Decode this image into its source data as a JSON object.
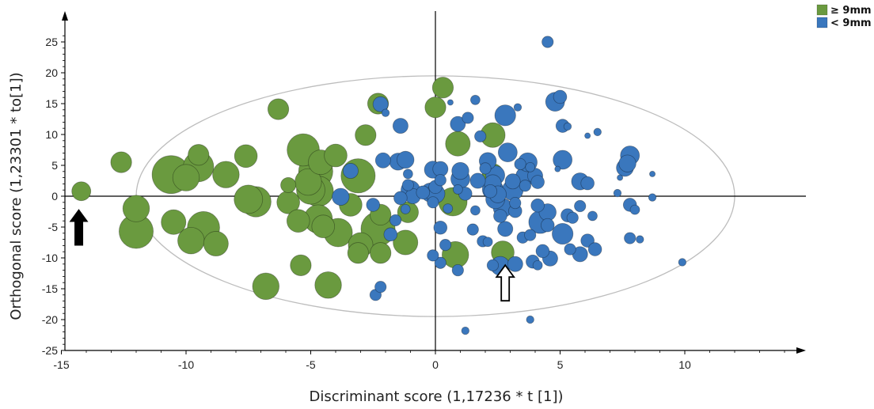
{
  "chart_data": {
    "type": "scatter",
    "xlabel": "Discriminant score (1,17236 * t [1])",
    "ylabel": "Orthogonal score (1,23301 * to[1])",
    "xlim": [
      -15,
      15
    ],
    "ylim": [
      -25,
      28
    ],
    "x_ticks": [
      -15,
      -10,
      -5,
      0,
      5,
      10
    ],
    "y_ticks": [
      -25,
      -20,
      -15,
      -10,
      -5,
      0,
      5,
      10,
      15,
      20,
      25
    ],
    "grid": false,
    "legend_position": "top-right",
    "colors": {
      "ge9": "#6a9a3f",
      "lt9": "#3a77bd",
      "ellipse": "#bdbdbd",
      "axis": "#000000"
    },
    "ellipse": {
      "center": [
        0,
        0
      ],
      "rx": 12,
      "ry": 19.5
    },
    "annotations": [
      {
        "type": "filled-arrow",
        "x": -14.3,
        "y": -5,
        "direction": "up"
      },
      {
        "type": "hollow-arrow",
        "x": 2.8,
        "y": -14,
        "direction": "up"
      }
    ],
    "series": [
      {
        "name": "≥ 9mm",
        "color": "#6a9a3f",
        "points": [
          [
            -14.2,
            0.8,
            1
          ],
          [
            -12.6,
            5.5,
            1.1
          ],
          [
            -12,
            -2,
            1.4
          ],
          [
            -12,
            -5.7,
            1.8
          ],
          [
            -10.6,
            3.5,
            2.0
          ],
          [
            -10,
            3,
            1.4
          ],
          [
            -9.5,
            4.8,
            1.6
          ],
          [
            -9.5,
            6.7,
            1.1
          ],
          [
            -10.5,
            -4.2,
            1.3
          ],
          [
            -9.8,
            -7.2,
            1.4
          ],
          [
            -9.3,
            -5.1,
            1.7
          ],
          [
            -8.8,
            -7.7,
            1.3
          ],
          [
            -8.4,
            3.5,
            1.4
          ],
          [
            -7.6,
            6.5,
            1.2
          ],
          [
            -7.5,
            -0.5,
            1.5
          ],
          [
            -7.2,
            -0.9,
            1.6
          ],
          [
            -6.8,
            -14.6,
            1.4
          ],
          [
            -6.3,
            14.1,
            1.1
          ],
          [
            -5.9,
            1.8,
            0.8
          ],
          [
            -5.9,
            -1,
            1.2
          ],
          [
            -5.5,
            -4,
            1.2
          ],
          [
            -5.4,
            -11.2,
            1.1
          ],
          [
            -5.3,
            7.5,
            1.7
          ],
          [
            -5.1,
            2.3,
            1.4
          ],
          [
            -5,
            1,
            1.5
          ],
          [
            -4.8,
            4,
            1.8
          ],
          [
            -4.6,
            5.5,
            1.3
          ],
          [
            -4.7,
            0.8,
            1.6
          ],
          [
            -4.7,
            -3.7,
            1.5
          ],
          [
            -4.5,
            -4.9,
            1.2
          ],
          [
            -4.3,
            -14.4,
            1.4
          ],
          [
            -4,
            6.6,
            1.2
          ],
          [
            -3.9,
            -5.9,
            1.5
          ],
          [
            -3.4,
            -1.4,
            1.2
          ],
          [
            -3.1,
            -9.2,
            1.1
          ],
          [
            -3,
            -7.9,
            1.3
          ],
          [
            -3.1,
            3.3,
            1.8
          ],
          [
            -2.8,
            9.9,
            1.1
          ],
          [
            -2.3,
            -5.3,
            1.8
          ],
          [
            -2.3,
            15,
            1.1
          ],
          [
            -2.2,
            -3,
            1.1
          ],
          [
            -2.2,
            -9.2,
            1.1
          ],
          [
            -1.2,
            -7.5,
            1.3
          ],
          [
            -1.1,
            -2.6,
            1.1
          ],
          [
            0,
            14.4,
            1.1
          ],
          [
            0.3,
            17.6,
            1.1
          ],
          [
            0.9,
            8.5,
            1.3
          ],
          [
            0.7,
            -0.9,
            1.5
          ],
          [
            0.8,
            -9.5,
            1.4
          ],
          [
            2.3,
            9.9,
            1.3
          ],
          [
            2.3,
            3.6,
            1.1
          ],
          [
            2.7,
            -9.1,
            1.2
          ]
        ]
      },
      {
        "name": "< 9mm",
        "color": "#3a77bd",
        "points": [
          [
            4.5,
            25,
            0.6
          ],
          [
            -2.2,
            14.9,
            0.8
          ],
          [
            -2,
            13.5,
            0.4
          ],
          [
            -1.4,
            11.4,
            0.8
          ],
          [
            -2.1,
            5.8,
            0.8
          ],
          [
            -1.5,
            5.6,
            0.9
          ],
          [
            -1.2,
            5.9,
            0.9
          ],
          [
            -1.1,
            3.6,
            0.5
          ],
          [
            -1.1,
            1.8,
            0.6
          ],
          [
            -1,
            1,
            1.0
          ],
          [
            -0.9,
            0,
            0.8
          ],
          [
            -0.5,
            0.6,
            0.7
          ],
          [
            -0.2,
            0.6,
            1.0
          ],
          [
            0,
            0.4,
            1.0
          ],
          [
            -0.1,
            4.3,
            0.9
          ],
          [
            0.2,
            4.4,
            0.8
          ],
          [
            0.2,
            2.6,
            0.6
          ],
          [
            0,
            1.5,
            0.7
          ],
          [
            0.6,
            15.2,
            0.3
          ],
          [
            0.9,
            11.7,
            0.8
          ],
          [
            1,
            4.1,
            0.9
          ],
          [
            1,
            2.8,
            1.0
          ],
          [
            0.9,
            1.1,
            0.5
          ],
          [
            1.3,
            12.7,
            0.6
          ],
          [
            1.6,
            15.6,
            0.5
          ],
          [
            2,
            4.5,
            0.6
          ],
          [
            2.1,
            5.7,
            0.9
          ],
          [
            1.7,
            2.5,
            0.8
          ],
          [
            2.3,
            2.1,
            0.9
          ],
          [
            2.4,
            3.4,
            1.0
          ],
          [
            2.3,
            1.1,
            1.1
          ],
          [
            2.5,
            0.3,
            0.9
          ],
          [
            2.7,
            -1.9,
            1.0
          ],
          [
            2.6,
            -3.2,
            0.7
          ],
          [
            2.8,
            13.1,
            1.1
          ],
          [
            2.9,
            7.1,
            1.0
          ],
          [
            3.1,
            1,
            1.1
          ],
          [
            3.3,
            14.4,
            0.4
          ],
          [
            3.6,
            3.2,
            1.0
          ],
          [
            3.7,
            5.5,
            1.0
          ],
          [
            3.6,
            1.7,
            0.6
          ],
          [
            4,
            3.3,
            0.8
          ],
          [
            4.1,
            2.3,
            0.7
          ],
          [
            4.1,
            -1.5,
            0.7
          ],
          [
            4.2,
            -4.2,
            1.2
          ],
          [
            4.5,
            -4.7,
            0.7
          ],
          [
            4.5,
            -2.6,
            0.9
          ],
          [
            4.9,
            4.4,
            0.3
          ],
          [
            4.8,
            15.3,
            1.0
          ],
          [
            5,
            16.1,
            0.7
          ],
          [
            5.1,
            11.4,
            0.7
          ],
          [
            5.3,
            11.3,
            0.4
          ],
          [
            5.1,
            5.9,
            1.0
          ],
          [
            5.1,
            -6.1,
            1.1
          ],
          [
            5.3,
            -3.1,
            0.7
          ],
          [
            5.8,
            -1.6,
            0.6
          ],
          [
            5.8,
            2.4,
            0.9
          ],
          [
            6.1,
            2.1,
            0.7
          ],
          [
            6.1,
            9.8,
            0.3
          ],
          [
            6.5,
            10.4,
            0.4
          ],
          [
            6.1,
            -7.2,
            0.7
          ],
          [
            5.8,
            -9.4,
            0.8
          ],
          [
            6.4,
            -8.6,
            0.7
          ],
          [
            7.4,
            3,
            0.3
          ],
          [
            7.3,
            0.5,
            0.4
          ],
          [
            7.6,
            4.6,
            0.9
          ],
          [
            7.7,
            5.3,
            0.9
          ],
          [
            7.8,
            6.6,
            1.0
          ],
          [
            7.8,
            -1.4,
            0.7
          ],
          [
            8,
            -2.2,
            0.5
          ],
          [
            8.2,
            -7,
            0.4
          ],
          [
            8.7,
            -0.2,
            0.4
          ],
          [
            8.7,
            3.6,
            0.3
          ],
          [
            9.9,
            -10.7,
            0.4
          ],
          [
            -2.4,
            -16,
            0.6
          ],
          [
            -2.2,
            -14.7,
            0.6
          ],
          [
            1.2,
            -21.8,
            0.4
          ],
          [
            3.8,
            -20,
            0.4
          ],
          [
            2.6,
            -11.3,
            1.0
          ],
          [
            3.2,
            -11,
            0.8
          ],
          [
            1.9,
            -7.3,
            0.6
          ],
          [
            2.1,
            -7.4,
            0.5
          ],
          [
            2.3,
            -11.2,
            0.6
          ],
          [
            1.5,
            -5.4,
            0.6
          ],
          [
            2.8,
            -5.3,
            0.8
          ],
          [
            3.5,
            -6.7,
            0.6
          ],
          [
            3.2,
            -2.4,
            0.7
          ],
          [
            3.8,
            -6.3,
            0.6
          ],
          [
            4.3,
            -8.9,
            0.7
          ],
          [
            3.9,
            -10.6,
            0.7
          ],
          [
            4.1,
            -11.2,
            0.5
          ],
          [
            4.6,
            -10.1,
            0.8
          ],
          [
            5.4,
            -8.6,
            0.6
          ],
          [
            5.5,
            -3.5,
            0.6
          ],
          [
            6.3,
            -3.2,
            0.5
          ],
          [
            7.8,
            -6.8,
            0.6
          ],
          [
            0.2,
            -5.1,
            0.7
          ],
          [
            0.4,
            -7.9,
            0.6
          ],
          [
            0.2,
            -10.8,
            0.6
          ],
          [
            -0.1,
            -9.6,
            0.6
          ],
          [
            -1.6,
            -3.9,
            0.6
          ],
          [
            -1.8,
            -6.2,
            0.7
          ],
          [
            0.5,
            -2,
            0.5
          ],
          [
            -0.1,
            -1,
            0.6
          ],
          [
            -1.4,
            -0.3,
            0.7
          ],
          [
            -2.5,
            -1.4,
            0.7
          ],
          [
            -1.2,
            -2.1,
            0.5
          ],
          [
            -3.4,
            4.1,
            0.8
          ],
          [
            -3.8,
            -0.1,
            0.9
          ],
          [
            0.9,
            -12,
            0.6
          ],
          [
            1.8,
            9.7,
            0.6
          ],
          [
            2.2,
            0.8,
            0.7
          ],
          [
            2.4,
            -0.5,
            1.0
          ],
          [
            3.2,
            -1.1,
            0.6
          ],
          [
            3.4,
            5.2,
            0.6
          ],
          [
            3.8,
            4.7,
            0.5
          ],
          [
            3.1,
            2.4,
            0.8
          ],
          [
            1.6,
            -2.3,
            0.5
          ],
          [
            1.2,
            0.4,
            0.7
          ]
        ]
      }
    ]
  }
}
